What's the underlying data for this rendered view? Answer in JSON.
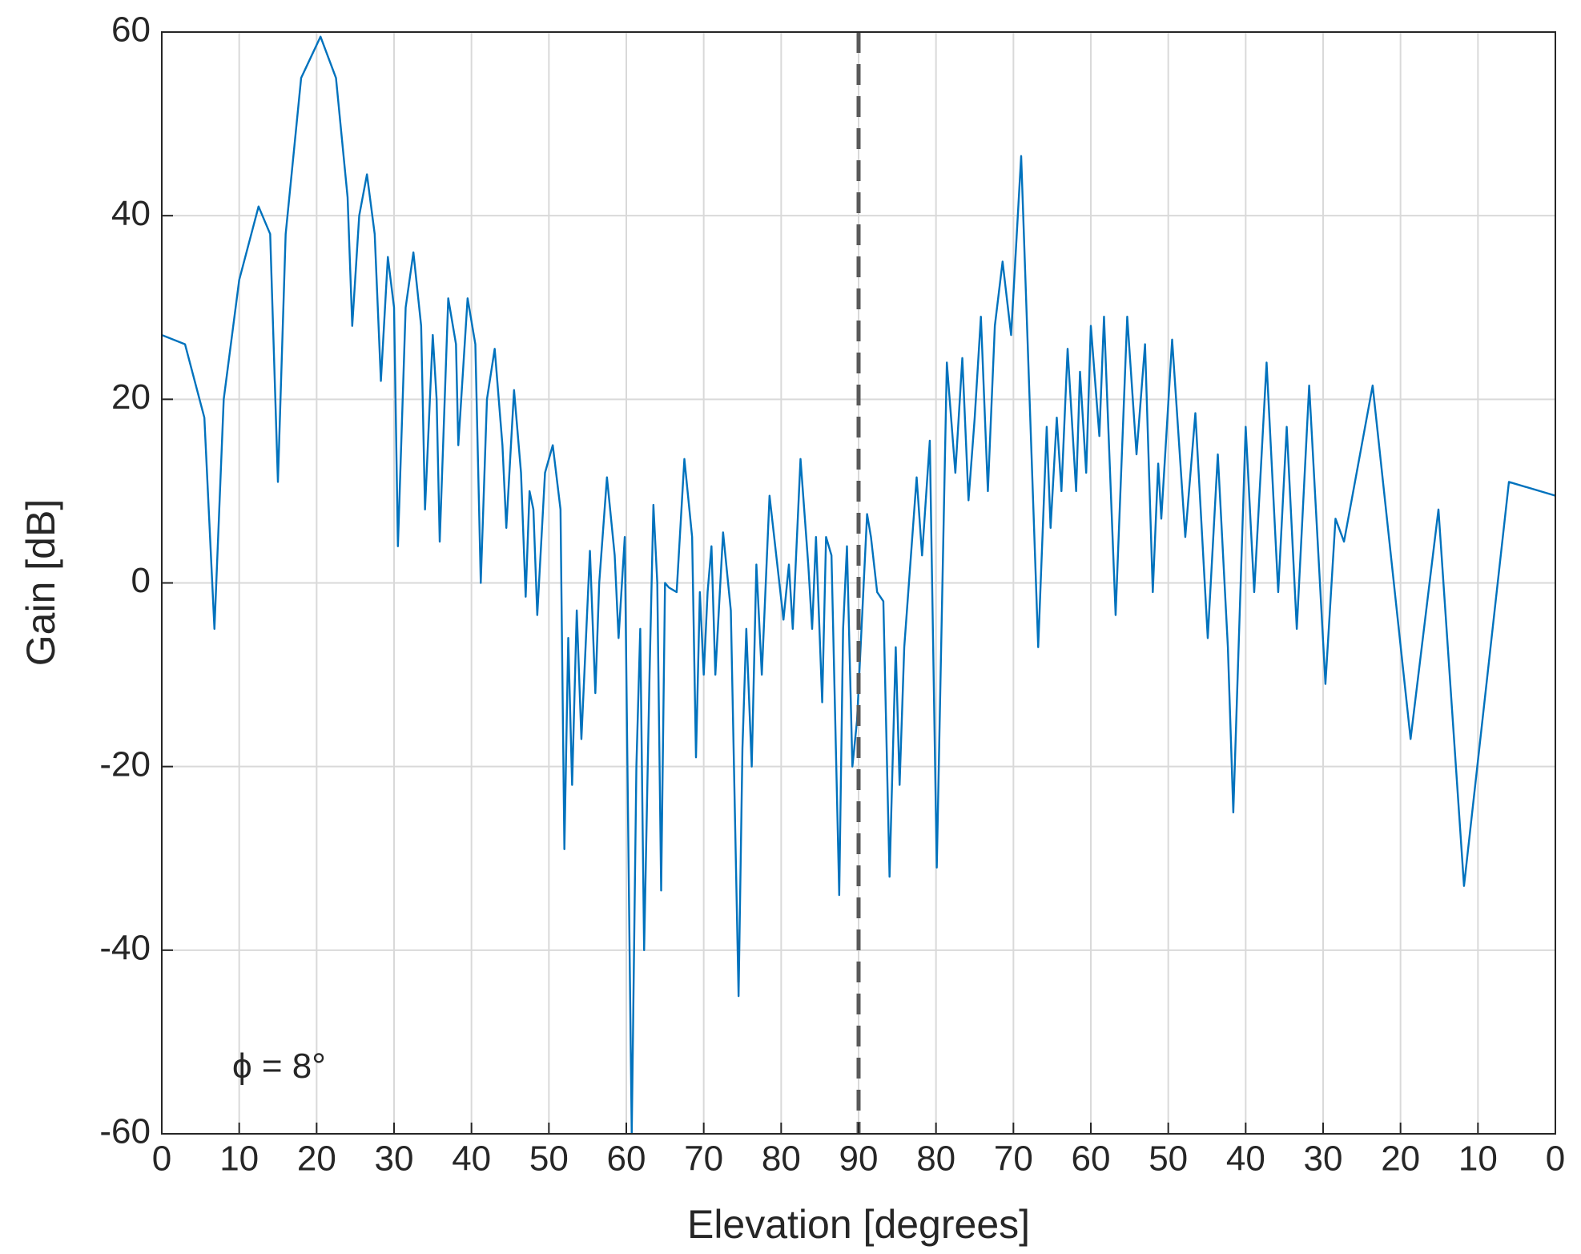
{
  "chart_data": {
    "type": "line",
    "xlabel": "Elevation [degrees]",
    "ylabel": "Gain [dB]",
    "annotation": "ϕ = 8°",
    "color": "#0072bd",
    "grid": true,
    "vline": 90,
    "xlim": [
      0,
      180
    ],
    "ylim": [
      -60,
      60
    ],
    "xticks": [
      0,
      10,
      20,
      30,
      40,
      50,
      60,
      70,
      80,
      90,
      {
        "value": 100,
        "label": "80"
      },
      {
        "value": 110,
        "label": "70"
      },
      {
        "value": 120,
        "label": "60"
      },
      {
        "value": 130,
        "label": "50"
      },
      {
        "value": 140,
        "label": "40"
      },
      {
        "value": 150,
        "label": "30"
      },
      {
        "value": 160,
        "label": "20"
      },
      {
        "value": 170,
        "label": "10"
      },
      {
        "value": 180,
        "label": "0"
      }
    ],
    "yticks": [
      -60,
      -40,
      -20,
      0,
      20,
      40,
      60
    ],
    "x": [
      0,
      3,
      5.5,
      6.8,
      8,
      10,
      12.5,
      14,
      15,
      16,
      18,
      20.5,
      22.5,
      24,
      24.6,
      25.5,
      26.5,
      27.5,
      28.3,
      29.2,
      30,
      30.5,
      31.5,
      32.5,
      33.5,
      34,
      35,
      35.5,
      35.9,
      37,
      38,
      38.3,
      39.5,
      40.5,
      41.2,
      42,
      43,
      44,
      44.5,
      45.5,
      46.4,
      47,
      47.5,
      48,
      48.5,
      49.5,
      50.5,
      51.5,
      52,
      52.5,
      53,
      53.6,
      54.2,
      55.3,
      56,
      56.5,
      57.5,
      58.5,
      59,
      59.8,
      60.7,
      61.3,
      61.8,
      62.3,
      63,
      63.5,
      64,
      64.5,
      65,
      65.5,
      66.5,
      67.5,
      68.5,
      69,
      69.5,
      70,
      70.5,
      71,
      71.5,
      72.5,
      73.5,
      74.5,
      75,
      75.5,
      76.2,
      76.8,
      77.5,
      78.5,
      79.5,
      80.3,
      81,
      81.5,
      82.5,
      83.5,
      84,
      84.5,
      85.3,
      85.8,
      86.5,
      87.5,
      88,
      88.5,
      89.2,
      89.8,
      91.1,
      91.6,
      92.4,
      93.2,
      94,
      94.8,
      95.3,
      95.9,
      97.5,
      98.2,
      99.2,
      100.1,
      101.4,
      102.5,
      103.4,
      104.2,
      105,
      105.8,
      106.7,
      107.6,
      108.6,
      109.7,
      111,
      113.2,
      114.3,
      114.8,
      115.6,
      116.2,
      117,
      118.1,
      118.6,
      119.4,
      120,
      121.1,
      121.7,
      123.2,
      124.7,
      125.9,
      127,
      128,
      128.7,
      129.1,
      130.5,
      132.2,
      133.5,
      135.1,
      136.4,
      137.7,
      138.4,
      140,
      141.1,
      142.7,
      144.2,
      145.3,
      146.6,
      148.2,
      150.3,
      151.6,
      152.7,
      156.4,
      161.3,
      164.9,
      168.2,
      174,
      180
    ],
    "values": [
      27,
      26,
      18,
      -5,
      20,
      33,
      41,
      38,
      11,
      38,
      55,
      59.5,
      55,
      42,
      28,
      40,
      44.5,
      38,
      22,
      35.5,
      30,
      4,
      30,
      36,
      28,
      8,
      27,
      20,
      4.5,
      31,
      26,
      15,
      31,
      26,
      0,
      20,
      25.5,
      15,
      6,
      21,
      12,
      -1.5,
      10,
      8,
      -3.5,
      12,
      15,
      8,
      -29,
      -6,
      -22,
      -3,
      -17,
      3.5,
      -12,
      0,
      11.5,
      3,
      -6,
      5,
      -60,
      -20,
      -5,
      -40,
      -10,
      8.5,
      0,
      -33.5,
      0,
      -0.5,
      -1,
      13.5,
      5,
      -19,
      -1,
      -10,
      -1,
      4,
      -10,
      5.5,
      -3,
      -45,
      -18,
      -5,
      -20,
      2,
      -10,
      9.5,
      2,
      -4,
      2,
      -5,
      13.5,
      2,
      -5,
      5,
      -13,
      5,
      3,
      -34,
      -5,
      4,
      -20,
      -15,
      7.5,
      5,
      -1,
      -2,
      -32,
      -7,
      -22,
      -7,
      11.5,
      3,
      15.5,
      -31,
      24,
      12,
      24.5,
      9,
      18,
      29,
      10,
      28,
      35,
      27,
      46.5,
      -7,
      17,
      6,
      18,
      10,
      25.5,
      10,
      23,
      12,
      28,
      16,
      29,
      -3.5,
      29,
      14,
      26,
      -1,
      13,
      7,
      26.5,
      5,
      18.5,
      -6,
      14,
      -7,
      -25,
      17,
      -1,
      24,
      -1,
      17,
      -5,
      21.5,
      -11,
      7,
      4.5,
      21.5,
      -17,
      8,
      -33,
      11,
      9.5
    ]
  }
}
